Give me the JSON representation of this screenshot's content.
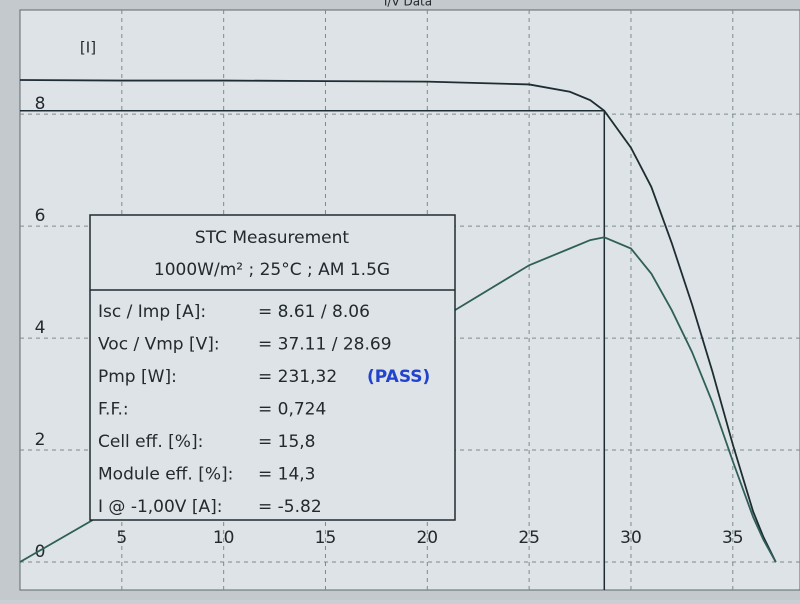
{
  "chart_data": {
    "type": "line",
    "title": "I/V Data",
    "y_label": "[I]",
    "x": [
      0,
      5,
      10,
      15,
      20,
      25,
      27,
      28,
      28.69,
      30,
      31,
      32,
      33,
      34,
      35,
      36,
      36.5,
      37.11
    ],
    "series": [
      {
        "color": "#1e2c33",
        "values": [
          8.61,
          8.6,
          8.6,
          8.59,
          8.58,
          8.53,
          8.4,
          8.25,
          8.06,
          7.4,
          6.7,
          5.7,
          4.6,
          3.4,
          2.1,
          0.9,
          0.45,
          0
        ]
      },
      {
        "color": "#2f5f58",
        "values": [
          0,
          1.05,
          2.1,
          3.15,
          4.2,
          5.3,
          5.6,
          5.75,
          5.8,
          5.6,
          5.15,
          4.5,
          3.75,
          2.85,
          1.8,
          0.8,
          0.4,
          0
        ]
      }
    ],
    "mpp": {
      "x": 28.69,
      "y": 8.06
    },
    "xlim": [
      0,
      38.3
    ],
    "ylim": [
      -0.5,
      9.86
    ],
    "xticks": [
      5,
      10,
      15,
      20,
      25,
      30,
      35
    ],
    "yticks": [
      0,
      2,
      4,
      6,
      8
    ],
    "grid": true,
    "info_box": {
      "title": "STC Measurement",
      "subtitle": "1000W/m² ; 25°C ; AM 1.5G",
      "rows": [
        [
          "Isc / Imp [A]:",
          "= 8.61 / 8.06"
        ],
        [
          "Voc / Vmp [V]:",
          "= 37.11 / 28.69"
        ],
        [
          "Pmp [W]:",
          "= 231,32",
          "(PASS)"
        ],
        [
          "F.F.:",
          "= 0,724"
        ],
        [
          "Cell eff. [%]:",
          "= 15,8"
        ],
        [
          "Module eff. [%]:",
          "= 14,3"
        ],
        [
          "I @ -1,00V [A]:",
          "= -5.82"
        ]
      ]
    }
  }
}
